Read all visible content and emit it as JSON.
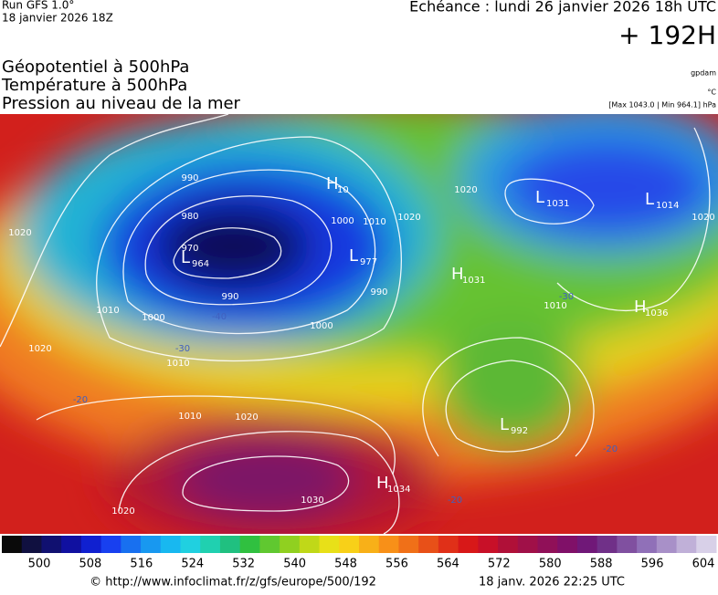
{
  "header": {
    "run": "Run GFS 1.0°",
    "run_date": "18 janvier 2026 18Z",
    "forecast": "Echéance : lundi 26 janvier 2026 18h UTC",
    "lead": "+ 192H"
  },
  "titles": [
    "Géopotentiel à 500hPa",
    "Température à 500hPa",
    "Pression au niveau de la mer"
  ],
  "units": {
    "geopotential": "gpdam",
    "temperature": "°C",
    "pressure": "[Max 1043.0 | Min 964.1] hPa"
  },
  "centers": [
    {
      "letter": "L",
      "value": "964"
    },
    {
      "letter": "L",
      "value": "977"
    },
    {
      "letter": "H",
      "value": "10"
    },
    {
      "letter": "H",
      "value": "1031"
    },
    {
      "letter": "L",
      "value": "1031"
    },
    {
      "letter": "L",
      "value": "1014"
    },
    {
      "letter": "H",
      "value": "1036"
    },
    {
      "letter": "L",
      "value": "992"
    },
    {
      "letter": "H",
      "value": "1034"
    }
  ],
  "isobar_labels": [
    "990",
    "980",
    "970",
    "990",
    "1000",
    "1000",
    "1010",
    "1010",
    "1020",
    "1020",
    "1020",
    "1010",
    "1000",
    "990",
    "1030",
    "1020",
    "1020",
    "1010",
    "1020",
    "1020",
    "1010"
  ],
  "temperature_labels": [
    "-40",
    "-30",
    "-20",
    "-20",
    "-30",
    "-20"
  ],
  "colorbar": {
    "ticks": [
      "500",
      "508",
      "516",
      "524",
      "532",
      "540",
      "548",
      "556",
      "564",
      "572",
      "580",
      "588",
      "596",
      "604"
    ]
  },
  "footer": {
    "source": "© http://www.infoclimat.fr/z/gfs/europe/500/192",
    "timestamp": "18 janv. 2026 22:25 UTC"
  }
}
